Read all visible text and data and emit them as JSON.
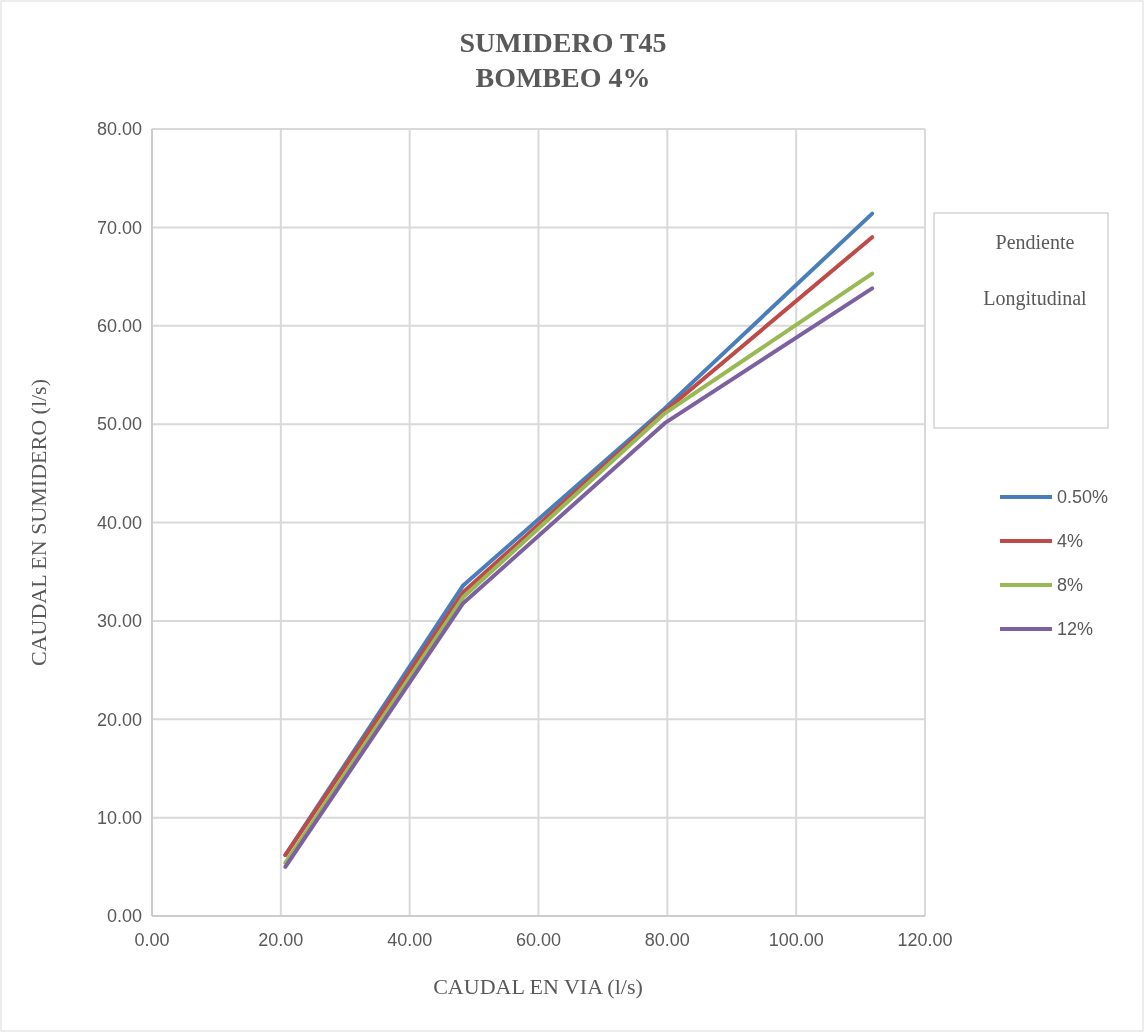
{
  "chart_data": {
    "type": "line",
    "title": "SUMIDERO T45\nBOMBEO 4%",
    "xlabel": "CAUDAL EN VIA (l/s)",
    "ylabel": "CAUDAL  EN SUMIDERO (l/s)",
    "legend_title": "Pendiente Longitudinal",
    "x": [
      20.7,
      48.3,
      79.6,
      111.8
    ],
    "series": [
      {
        "name": "0.50%",
        "color": "#4a7ebb",
        "values": [
          6.2,
          33.6,
          51.6,
          71.4
        ]
      },
      {
        "name": "4%",
        "color": "#be4b48",
        "values": [
          6.2,
          32.9,
          51.3,
          69.0
        ]
      },
      {
        "name": "8%",
        "color": "#98b954",
        "values": [
          5.4,
          32.4,
          51.1,
          65.3
        ]
      },
      {
        "name": "12%",
        "color": "#7d60a0",
        "values": [
          5.0,
          31.8,
          50.1,
          63.8
        ]
      }
    ],
    "xlim": [
      0,
      120
    ],
    "ylim": [
      0,
      80
    ],
    "xticks": [
      {
        "value": 0,
        "label": "0.00"
      },
      {
        "value": 20,
        "label": "20.00"
      },
      {
        "value": 40,
        "label": "40.00"
      },
      {
        "value": 60,
        "label": "60.00"
      },
      {
        "value": 80,
        "label": "80.00"
      },
      {
        "value": 100,
        "label": "100.00"
      },
      {
        "value": 120,
        "label": "120.00"
      }
    ],
    "yticks": [
      {
        "value": 0,
        "label": "0.00"
      },
      {
        "value": 10,
        "label": "10.00"
      },
      {
        "value": 20,
        "label": "20.00"
      },
      {
        "value": 30,
        "label": "30.00"
      },
      {
        "value": 40,
        "label": "40.00"
      },
      {
        "value": 50,
        "label": "50.00"
      },
      {
        "value": 60,
        "label": "60.00"
      },
      {
        "value": 70,
        "label": "70.00"
      },
      {
        "value": 80,
        "label": "80.00"
      }
    ],
    "grid": true,
    "legend": "right",
    "marker": "none",
    "line_style": "solid"
  }
}
